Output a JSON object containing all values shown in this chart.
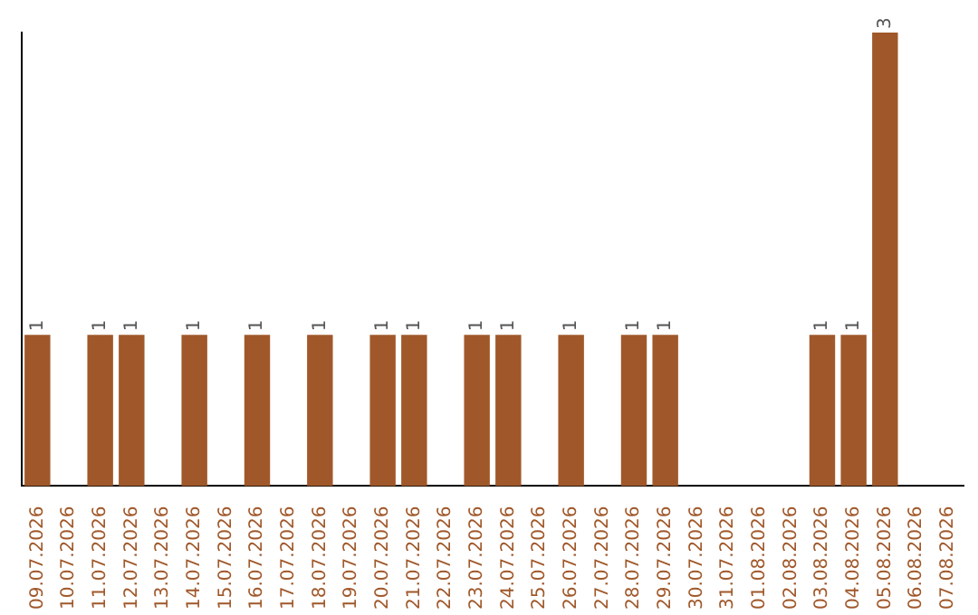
{
  "chart_data": {
    "type": "bar",
    "categories": [
      "09.07.2026",
      "10.07.2026",
      "11.07.2026",
      "12.07.2026",
      "13.07.2026",
      "14.07.2026",
      "15.07.2026",
      "16.07.2026",
      "17.07.2026",
      "18.07.2026",
      "19.07.2026",
      "20.07.2026",
      "21.07.2026",
      "22.07.2026",
      "23.07.2026",
      "24.07.2026",
      "25.07.2026",
      "26.07.2026",
      "27.07.2026",
      "28.07.2026",
      "29.07.2026",
      "30.07.2026",
      "31.07.2026",
      "01.08.2026",
      "02.08.2026",
      "03.08.2026",
      "04.08.2026",
      "05.08.2026",
      "06.08.2026",
      "07.08.2026"
    ],
    "values": [
      1,
      0,
      1,
      1,
      0,
      1,
      0,
      1,
      0,
      1,
      0,
      1,
      1,
      0,
      1,
      1,
      0,
      1,
      0,
      1,
      1,
      0,
      0,
      0,
      0,
      1,
      1,
      3,
      0,
      0
    ],
    "value_labels": [
      "1",
      null,
      "1",
      "1",
      null,
      "1",
      null,
      "1",
      null,
      "1",
      null,
      "1",
      "1",
      null,
      "1",
      "1",
      null,
      "1",
      null,
      "1",
      "1",
      null,
      null,
      null,
      null,
      "1",
      "1",
      "3",
      null,
      null
    ],
    "color": "#a0582a",
    "grid": false,
    "legend": false,
    "tick_labels": "x"
  }
}
